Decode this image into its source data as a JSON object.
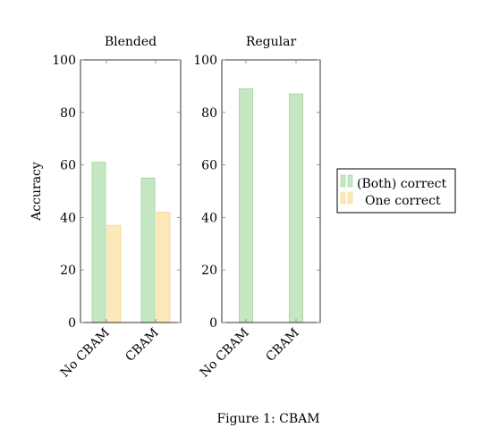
{
  "chart_data": [
    {
      "type": "bar",
      "title": "Blended",
      "categories": [
        "No CBAM",
        "CBAM"
      ],
      "series": [
        {
          "name": "(Both) correct",
          "values": [
            61,
            55
          ]
        },
        {
          "name": "One correct",
          "values": [
            37,
            42
          ]
        }
      ],
      "ylabel": "Accuracy",
      "ylim": [
        0,
        100
      ],
      "yticks": [
        0,
        20,
        40,
        60,
        80,
        100
      ]
    },
    {
      "type": "bar",
      "title": "Regular",
      "categories": [
        "No CBAM",
        "CBAM"
      ],
      "series": [
        {
          "name": "(Both) correct",
          "values": [
            89,
            87
          ]
        }
      ],
      "ylim": [
        0,
        100
      ],
      "yticks": [
        0,
        20,
        40,
        60,
        80,
        100
      ]
    }
  ],
  "legend": {
    "placement": "right",
    "entries": [
      {
        "label": "(Both) correct",
        "fill": "#c5e8c2",
        "stroke": "#9bd396"
      },
      {
        "label": "One correct",
        "fill": "#fde8b9",
        "stroke": "#f6d78e"
      }
    ]
  },
  "caption": "Figure 1: CBAM",
  "colors": {
    "both_fill": "#c5e8c2",
    "both_stroke": "#9bd396",
    "one_fill": "#fde8b9",
    "one_stroke": "#f6d78e",
    "axis": "#000000",
    "tick": "#808080"
  }
}
